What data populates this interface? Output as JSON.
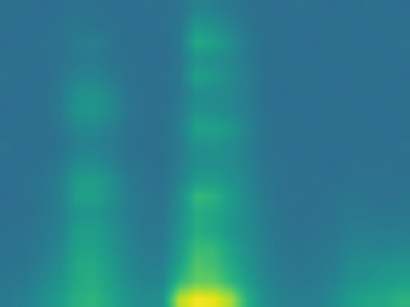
{
  "chart_data": {
    "type": "heatmap",
    "tick_labels": false,
    "grid": false,
    "zlim": [
      -1,
      10
    ],
    "cells": [
      [
        3.0,
        3.1,
        2.9,
        3.0,
        3.2,
        3.1,
        3.0,
        2.9,
        3.1,
        3.0,
        3.2,
        3.9,
        3.7,
        3.4,
        3.1,
        3.0,
        2.9,
        3.1,
        3.0,
        2.9,
        3.0,
        3.1,
        3.0,
        2.9
      ],
      [
        3.1,
        2.9,
        3.0,
        3.2,
        3.3,
        3.2,
        3.1,
        3.0,
        2.9,
        3.1,
        3.3,
        4.8,
        4.4,
        3.8,
        3.2,
        3.0,
        3.1,
        2.9,
        3.0,
        3.1,
        2.9,
        3.0,
        3.1,
        3.0
      ],
      [
        2.9,
        3.0,
        3.1,
        3.1,
        3.6,
        3.7,
        3.3,
        3.0,
        3.1,
        3.0,
        3.4,
        5.6,
        5.2,
        4.3,
        3.5,
        3.1,
        3.0,
        3.0,
        2.9,
        3.0,
        3.1,
        2.9,
        3.0,
        3.1
      ],
      [
        3.0,
        3.1,
        3.0,
        3.2,
        3.4,
        3.5,
        3.2,
        3.1,
        3.0,
        2.9,
        3.3,
        4.5,
        4.3,
        4.0,
        3.4,
        3.0,
        3.1,
        2.9,
        3.0,
        3.1,
        3.0,
        3.1,
        2.9,
        3.0
      ],
      [
        3.1,
        3.0,
        2.9,
        3.3,
        3.8,
        3.9,
        3.5,
        3.1,
        3.0,
        3.1,
        3.4,
        5.2,
        4.8,
        4.2,
        3.6,
        3.1,
        3.0,
        3.1,
        3.0,
        2.9,
        3.0,
        3.0,
        3.1,
        2.9
      ],
      [
        3.0,
        2.9,
        3.1,
        3.4,
        4.4,
        4.6,
        4.0,
        3.2,
        3.1,
        3.0,
        3.3,
        4.3,
        4.2,
        4.0,
        3.5,
        3.0,
        2.9,
        3.0,
        3.1,
        3.0,
        2.9,
        3.1,
        3.0,
        3.0
      ],
      [
        2.9,
        3.0,
        3.0,
        3.5,
        4.6,
        4.7,
        4.1,
        3.3,
        3.0,
        3.1,
        3.5,
        4.5,
        4.4,
        4.1,
        3.6,
        3.1,
        3.0,
        3.0,
        2.9,
        3.1,
        3.0,
        2.9,
        3.0,
        3.1
      ],
      [
        3.0,
        3.1,
        3.0,
        3.3,
        4.0,
        4.1,
        3.7,
        3.2,
        3.1,
        3.0,
        3.6,
        5.3,
        5.2,
        4.7,
        3.8,
        3.2,
        3.0,
        3.1,
        3.0,
        3.0,
        3.1,
        3.0,
        2.9,
        3.0
      ],
      [
        3.1,
        3.0,
        2.9,
        3.2,
        3.7,
        3.8,
        3.5,
        3.1,
        3.0,
        3.1,
        3.5,
        4.5,
        4.6,
        4.3,
        3.7,
        3.1,
        3.0,
        2.9,
        3.1,
        3.0,
        3.0,
        3.1,
        3.0,
        3.1
      ],
      [
        3.0,
        3.0,
        3.1,
        3.4,
        4.1,
        4.2,
        3.8,
        3.2,
        3.1,
        3.0,
        3.6,
        4.3,
        4.4,
        4.2,
        3.8,
        3.2,
        3.1,
        3.0,
        3.0,
        2.9,
        3.1,
        3.0,
        3.1,
        3.0
      ],
      [
        3.0,
        3.1,
        3.2,
        3.6,
        4.9,
        5.0,
        4.4,
        3.5,
        3.2,
        3.1,
        3.8,
        4.8,
        4.9,
        4.5,
        3.9,
        3.3,
        3.1,
        3.0,
        3.1,
        3.0,
        3.1,
        3.2,
        3.1,
        3.1
      ],
      [
        2.9,
        3.1,
        3.3,
        3.7,
        5.1,
        5.2,
        4.5,
        3.6,
        3.3,
        3.2,
        4.2,
        6.3,
        6.0,
        5.0,
        4.1,
        3.4,
        3.1,
        3.1,
        3.0,
        3.2,
        3.3,
        3.2,
        3.1,
        3.2
      ],
      [
        3.0,
        3.0,
        3.3,
        3.6,
        4.6,
        4.7,
        4.2,
        3.6,
        3.3,
        3.3,
        4.3,
        5.7,
        5.5,
        4.8,
        4.2,
        3.5,
        3.2,
        3.0,
        3.1,
        3.2,
        3.4,
        3.4,
        3.3,
        3.3
      ],
      [
        3.1,
        3.2,
        3.4,
        3.8,
        5.0,
        5.1,
        4.5,
        3.8,
        3.4,
        3.4,
        4.5,
        5.8,
        5.4,
        4.7,
        4.2,
        3.6,
        3.2,
        3.1,
        3.2,
        3.3,
        3.6,
        3.6,
        3.5,
        3.6
      ],
      [
        3.1,
        3.2,
        3.5,
        4.0,
        5.2,
        5.3,
        4.6,
        3.9,
        3.5,
        3.5,
        4.8,
        6.4,
        6.3,
        5.2,
        4.4,
        3.7,
        3.3,
        3.2,
        3.3,
        3.4,
        3.8,
        3.9,
        3.8,
        4.0
      ],
      [
        3.2,
        3.3,
        3.7,
        4.3,
        5.5,
        5.6,
        4.9,
        4.1,
        3.7,
        3.7,
        5.2,
        7.0,
        6.6,
        5.6,
        4.6,
        3.8,
        3.4,
        3.3,
        3.4,
        3.6,
        4.2,
        4.3,
        4.5,
        4.6
      ],
      [
        3.3,
        3.5,
        4.0,
        4.6,
        5.6,
        5.8,
        5.1,
        4.3,
        3.9,
        4.0,
        6.2,
        7.4,
        7.3,
        6.2,
        5.0,
        4.0,
        3.6,
        3.4,
        3.5,
        3.8,
        4.5,
        4.6,
        4.9,
        5.1
      ],
      [
        3.5,
        3.8,
        4.4,
        5.0,
        5.9,
        6.1,
        5.4,
        4.6,
        4.2,
        4.5,
        8.8,
        9.8,
        9.6,
        8.5,
        5.8,
        4.3,
        3.8,
        3.6,
        3.7,
        4.2,
        5.0,
        5.4,
        5.5,
        6.0
      ]
    ]
  }
}
